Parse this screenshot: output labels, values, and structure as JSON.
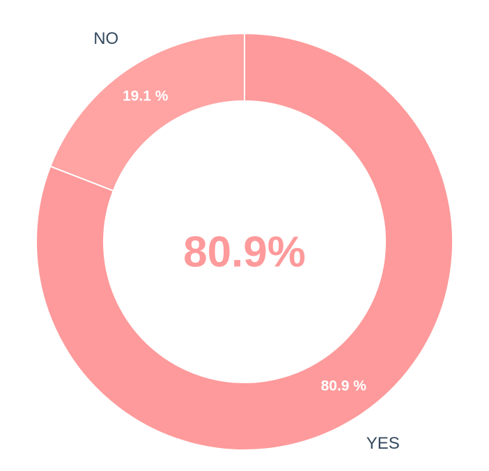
{
  "chart_data": {
    "type": "donut",
    "categories": [
      "YES",
      "NO"
    ],
    "values": [
      80.9,
      19.1
    ],
    "value_labels": [
      "80.9 %",
      "19.1 %"
    ],
    "colors": [
      "#fe9a9b",
      "#ffa3a3"
    ],
    "center_label": "80.9%"
  }
}
